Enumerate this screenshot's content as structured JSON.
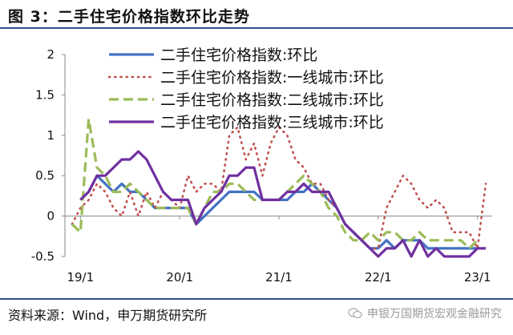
{
  "figure": {
    "title": "图 3：二手住宅价格指数环比走势",
    "source": "资料来源：Wind，申万期货研究所",
    "watermark": "申银万国期货宏观金融研究"
  },
  "chart_data": {
    "type": "line",
    "xlabel": "",
    "ylabel": "",
    "ylim": [
      -0.5,
      2
    ],
    "yticks": [
      2,
      1.5,
      1,
      0.5,
      0,
      -0.5
    ],
    "x_ticks": [
      "19/1",
      "20/1",
      "21/1",
      "22/1",
      "23/1"
    ],
    "x_tick_months": [
      0,
      12,
      24,
      36,
      48
    ],
    "x": [
      "18/12",
      "19/1",
      "19/2",
      "19/3",
      "19/4",
      "19/5",
      "19/6",
      "19/7",
      "19/8",
      "19/9",
      "19/10",
      "19/11",
      "19/12",
      "20/1",
      "20/2",
      "20/3",
      "20/4",
      "20/5",
      "20/6",
      "20/7",
      "20/8",
      "20/9",
      "20/10",
      "20/11",
      "20/12",
      "21/1",
      "21/2",
      "21/3",
      "21/4",
      "21/5",
      "21/6",
      "21/7",
      "21/8",
      "21/9",
      "21/10",
      "21/11",
      "21/12",
      "22/1",
      "22/2",
      "22/3",
      "22/4",
      "22/5",
      "22/6",
      "22/7",
      "22/8",
      "22/9",
      "22/10",
      "22/11",
      "22/12",
      "23/1",
      "23/2"
    ],
    "legend_position": "top",
    "grid": false,
    "series": [
      {
        "name": "二手住宅价格指数:环比",
        "style": "solid",
        "color": "#4472c4",
        "values": [
          null,
          0.2,
          0.3,
          0.5,
          0.4,
          0.3,
          0.4,
          0.3,
          0.3,
          0.2,
          0.1,
          0.1,
          0.1,
          0.1,
          0.1,
          -0.1,
          0.0,
          0.1,
          0.2,
          0.3,
          0.3,
          0.3,
          0.3,
          0.2,
          0.2,
          0.2,
          0.2,
          0.3,
          0.3,
          0.4,
          0.3,
          0.2,
          0.1,
          -0.1,
          -0.2,
          -0.3,
          -0.4,
          -0.4,
          -0.3,
          -0.4,
          -0.3,
          -0.3,
          -0.3,
          -0.4,
          -0.4,
          -0.4,
          -0.4,
          -0.4,
          -0.4,
          -0.4,
          null
        ]
      },
      {
        "name": "二手住宅价格指数:一线城市:环比",
        "style": "dotted",
        "color": "#c0504d",
        "values": [
          -0.1,
          0.1,
          0.2,
          0.4,
          0.3,
          0.1,
          0.0,
          0.3,
          0.0,
          0.3,
          0.1,
          0.3,
          0.2,
          0.1,
          0.5,
          0.3,
          0.4,
          0.4,
          0.3,
          1.0,
          1.1,
          0.7,
          0.9,
          0.5,
          0.9,
          1.1,
          1.0,
          0.7,
          0.6,
          0.4,
          0.4,
          0.2,
          0.1,
          -0.1,
          -0.2,
          -0.3,
          -0.4,
          -0.4,
          0.1,
          0.3,
          0.5,
          0.4,
          0.2,
          0.1,
          0.2,
          0.1,
          -0.2,
          -0.2,
          -0.2,
          -0.4,
          0.4
        ]
      },
      {
        "name": "二手住宅价格指数:二线城市:环比",
        "style": "dashed",
        "color": "#9bbb59",
        "values": [
          -0.1,
          -0.2,
          1.2,
          0.6,
          0.5,
          0.3,
          0.3,
          0.4,
          0.3,
          0.2,
          0.1,
          0.1,
          0.1,
          0.1,
          0.1,
          -0.1,
          0.1,
          0.3,
          0.3,
          0.4,
          0.4,
          0.3,
          0.2,
          0.2,
          0.2,
          0.2,
          0.3,
          0.4,
          0.5,
          0.4,
          0.3,
          0.1,
          0.0,
          -0.2,
          -0.3,
          -0.3,
          -0.2,
          -0.3,
          -0.2,
          -0.2,
          -0.3,
          -0.3,
          -0.2,
          -0.3,
          -0.3,
          -0.3,
          -0.3,
          -0.3,
          -0.4,
          -0.3,
          null
        ]
      },
      {
        "name": "二手住宅价格指数:三线城市:环比",
        "style": "solid",
        "color": "#7030a0",
        "values": [
          null,
          0.2,
          0.3,
          0.5,
          0.5,
          0.6,
          0.7,
          0.7,
          0.8,
          0.7,
          0.5,
          0.3,
          0.2,
          0.2,
          0.2,
          -0.1,
          0.1,
          0.2,
          0.3,
          0.5,
          0.5,
          0.6,
          0.6,
          0.2,
          0.2,
          0.2,
          0.3,
          0.3,
          0.4,
          0.3,
          0.3,
          0.3,
          0.1,
          -0.1,
          -0.2,
          -0.3,
          -0.4,
          -0.5,
          -0.4,
          -0.4,
          -0.3,
          -0.5,
          -0.3,
          -0.5,
          -0.4,
          -0.5,
          -0.5,
          -0.5,
          -0.5,
          -0.4,
          -0.4
        ]
      }
    ]
  }
}
